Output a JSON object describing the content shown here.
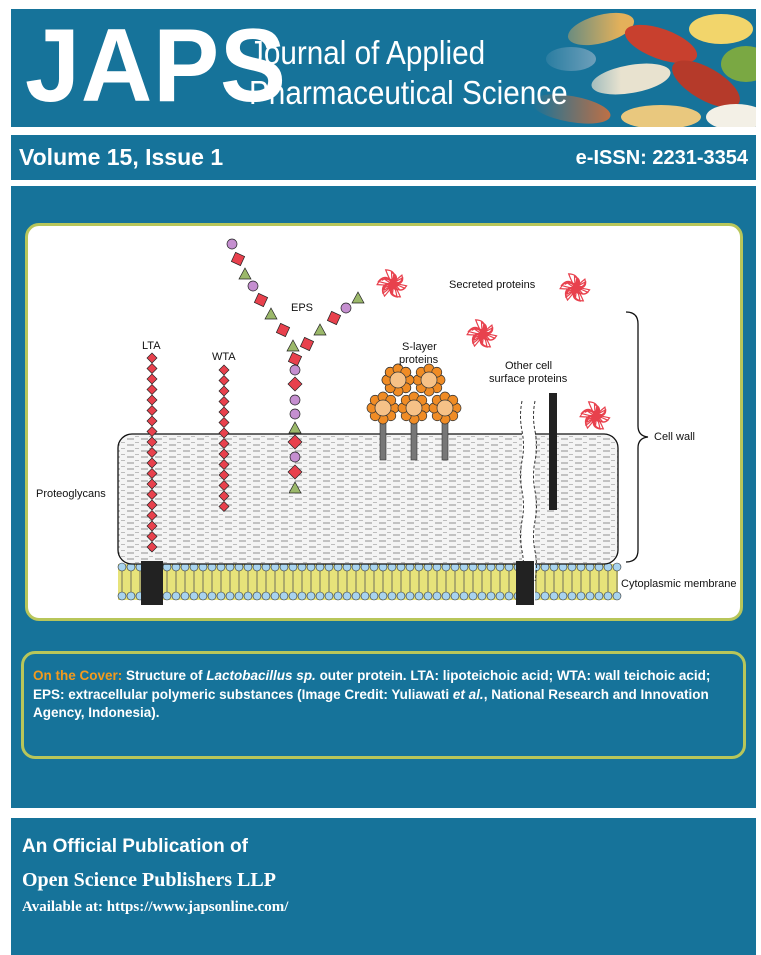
{
  "header": {
    "logo": "JAPS",
    "title_line1": "Journal of Applied",
    "title_line2": "Pharmaceutical Science"
  },
  "issue": {
    "volume": "Volume 15, Issue 1",
    "eissn": "e-ISSN: 2231-3354"
  },
  "figure": {
    "labels": {
      "lta": "LTA",
      "wta": "WTA",
      "eps": "EPS",
      "secreted": "Secreted proteins",
      "slayer1": "S-layer",
      "slayer2": "proteins",
      "other1": "Other cell",
      "other2": "surface proteins",
      "cellwall": "Cell wall",
      "proteoglycans": "Proteoglycans",
      "membrane": "Cytoplasmic membrane"
    },
    "colors": {
      "diamond": "#e8414d",
      "square": "#e8414d",
      "circle": "#c58fd0",
      "triangle": "#9bb86a",
      "slayer": "#f08c25",
      "protein": "#e8414d"
    }
  },
  "caption": {
    "label": "On the Cover:",
    "t1": " Structure of ",
    "species": "Lactobacillus sp.",
    "t2": " outer protein. LTA: lipoteichoic acid; WTA: wall teichoic acid; EPS: extracellular polymeric substances (Image Credit: Yuliawati ",
    "etal": "et al.",
    "t3": ", National Research and Innovation Agency, Indonesia)."
  },
  "footer": {
    "line1": "An Official Publication of",
    "line2": "Open Science Publishers LLP",
    "line3": "Available at: https://www.japsonline.com/"
  }
}
